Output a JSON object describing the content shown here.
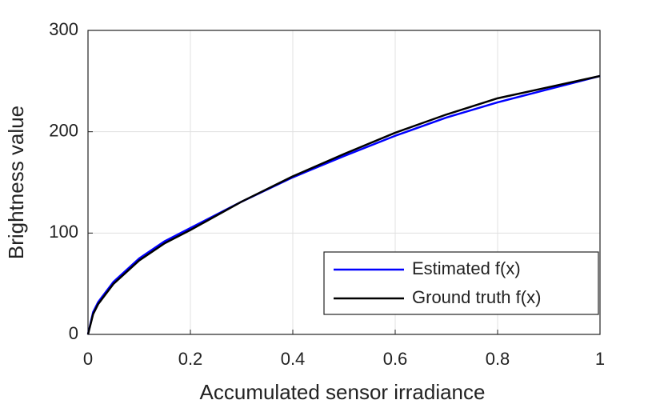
{
  "chart_data": {
    "type": "line",
    "xlabel": "Accumulated sensor irradiance",
    "ylabel": "Brightness value",
    "x": [
      0,
      0.01,
      0.02,
      0.05,
      0.1,
      0.15,
      0.2,
      0.3,
      0.4,
      0.5,
      0.6,
      0.7,
      0.8,
      0.9,
      1
    ],
    "series": [
      {
        "name": "Estimated f(x)",
        "color": "#0000ff",
        "values": [
          0,
          22,
          32,
          52,
          75,
          92,
          105,
          131,
          155,
          176,
          196,
          214,
          229,
          242,
          255
        ]
      },
      {
        "name": "Ground truth f(x)",
        "color": "#000000",
        "values": [
          0,
          20,
          30,
          50,
          73,
          90,
          103,
          131,
          156,
          178,
          199,
          217,
          233,
          244,
          255
        ]
      }
    ],
    "xlim": [
      0,
      1
    ],
    "xticks": [
      0,
      0.2,
      0.4,
      0.6,
      0.8,
      1
    ],
    "ylim": [
      0,
      300
    ],
    "yticks": [
      0,
      100,
      200,
      300
    ],
    "grid": true,
    "legend": "lower right"
  }
}
